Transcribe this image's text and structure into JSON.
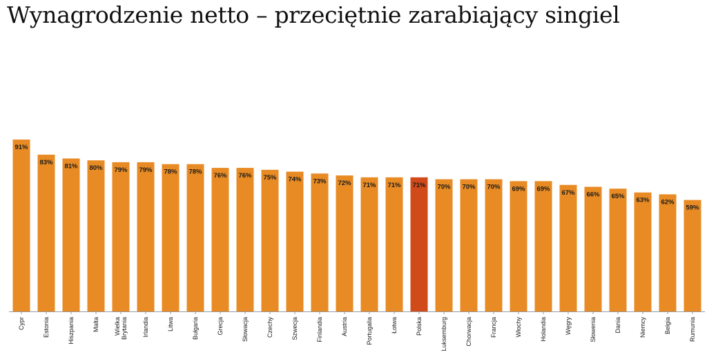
{
  "title": "Wynagrodzenie netto – przeciętnie zarabiający singiel",
  "chart_data": {
    "type": "bar",
    "title": "Wynagrodzenie netto – przeciętnie zarabiający singiel",
    "xlabel": "",
    "ylabel": "",
    "ylim": [
      0,
      100
    ],
    "grid": false,
    "legend": "none",
    "highlight_category": "Polska",
    "colors": {
      "bar": "#E88B24",
      "highlight": "#D04A1A",
      "axis": "#9a9a9a"
    },
    "categories": [
      "Cypr",
      "Estonia",
      "Hiszpania",
      "Malta",
      "Wielka Brytania",
      "Irlandia",
      "Litwa",
      "Bułgaria",
      "Grecja",
      "Słowacja",
      "Czechy",
      "Szwecja",
      "Finlandia",
      "Austria",
      "Portugalia",
      "Łotwa",
      "Polska",
      "Luksemburg",
      "Chorwacja",
      "Francja",
      "Włochy",
      "Holandia",
      "Węgry",
      "Słowenia",
      "Dania",
      "Niemcy",
      "Belgia",
      "Rumunia"
    ],
    "values": [
      91,
      83,
      81,
      80,
      79,
      79,
      78,
      78,
      76,
      76,
      75,
      74,
      73,
      72,
      71,
      71,
      71,
      70,
      70,
      70,
      69,
      69,
      67,
      66,
      65,
      63,
      62,
      59
    ],
    "value_labels": [
      "91%",
      "83%",
      "81%",
      "80%",
      "79%",
      "79%",
      "78%",
      "78%",
      "76%",
      "76%",
      "75%",
      "74%",
      "73%",
      "72%",
      "71%",
      "71%",
      "71%",
      "70%",
      "70%",
      "70%",
      "69%",
      "69%",
      "67%",
      "66%",
      "65%",
      "63%",
      "62%",
      "59%"
    ]
  }
}
